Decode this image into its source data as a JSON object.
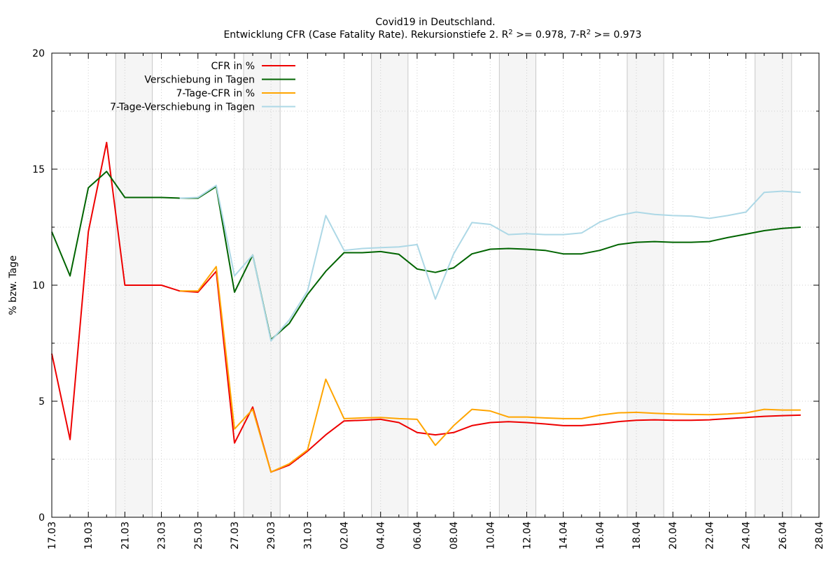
{
  "chart_data": {
    "type": "line",
    "title_line1": "Covid19 in Deutschland.",
    "title_line2_prefix": "Entwicklung CFR (Case Fatality Rate). Rekursionstiefe 2. R",
    "title_line2_mid": " >= 0.978, 7-R",
    "title_line2_suffix": " >= 0.973",
    "title_sup": "2",
    "ylabel": "% bzw. Tage",
    "xlabel": "",
    "ylim": [
      0,
      20
    ],
    "y_ticks": [
      0,
      5,
      10,
      15,
      20
    ],
    "x_start": "17.03",
    "x_end": "28.04",
    "x_tick_labels": [
      "17.03",
      "19.03",
      "21.03",
      "23.03",
      "25.03",
      "27.03",
      "29.03",
      "31.03",
      "02.04",
      "04.04",
      "06.04",
      "08.04",
      "10.04",
      "12.04",
      "14.04",
      "16.04",
      "18.04",
      "20.04",
      "22.04",
      "24.04",
      "26.04",
      "28.04"
    ],
    "grid": true,
    "legend_position": "top-left",
    "weekend_bands": [
      [
        3.5,
        5.5
      ],
      [
        10.5,
        12.5
      ],
      [
        17.5,
        19.5
      ],
      [
        24.5,
        26.5
      ],
      [
        31.5,
        33.5
      ],
      [
        38.5,
        40.5
      ]
    ],
    "series": [
      {
        "name": "CFR in %",
        "color": "#ee0000",
        "start_day": 0,
        "values": [
          7.05,
          3.35,
          12.3,
          16.15,
          10.0,
          10.0,
          10.0,
          9.75,
          9.7,
          10.6,
          3.2,
          4.75,
          1.95,
          2.25,
          2.85,
          3.55,
          4.15,
          4.18,
          4.22,
          4.08,
          3.65,
          3.55,
          3.65,
          3.95,
          4.08,
          4.12,
          4.08,
          4.02,
          3.95,
          3.95,
          4.02,
          4.12,
          4.18,
          4.2,
          4.18,
          4.18,
          4.2,
          4.25,
          4.3,
          4.35,
          4.38,
          4.4
        ]
      },
      {
        "name": "Verschiebung in Tagen",
        "color": "#006400",
        "start_day": 0,
        "values": [
          12.3,
          10.4,
          14.2,
          14.9,
          13.78,
          13.78,
          13.78,
          13.75,
          13.75,
          14.25,
          9.7,
          11.3,
          7.65,
          8.35,
          9.6,
          10.6,
          11.4,
          11.4,
          11.45,
          11.33,
          10.7,
          10.55,
          10.75,
          11.35,
          11.55,
          11.58,
          11.55,
          11.5,
          11.35,
          11.35,
          11.5,
          11.75,
          11.85,
          11.88,
          11.85,
          11.85,
          11.88,
          12.05,
          12.2,
          12.35,
          12.45,
          12.5
        ]
      },
      {
        "name": "7-Tage-CFR in %",
        "color": "#ffa500",
        "start_day": 7,
        "values": [
          9.75,
          9.75,
          10.8,
          3.8,
          4.65,
          1.95,
          2.3,
          2.9,
          5.95,
          4.25,
          4.28,
          4.3,
          4.25,
          4.22,
          3.1,
          3.95,
          4.65,
          4.58,
          4.32,
          4.32,
          4.28,
          4.25,
          4.25,
          4.4,
          4.5,
          4.52,
          4.48,
          4.45,
          4.43,
          4.42,
          4.45,
          4.5,
          4.65,
          4.62,
          4.62
        ]
      },
      {
        "name": "7-Tage-Verschiebung in Tagen",
        "color": "#add8e6",
        "start_day": 7,
        "values": [
          13.75,
          13.78,
          14.3,
          10.4,
          11.3,
          7.6,
          8.5,
          9.75,
          13.0,
          11.5,
          11.58,
          11.62,
          11.65,
          11.75,
          9.4,
          11.35,
          12.7,
          12.62,
          12.18,
          12.22,
          12.18,
          12.18,
          12.25,
          12.72,
          13.0,
          13.15,
          13.05,
          13.0,
          12.98,
          12.88,
          13.0,
          13.15,
          14.0,
          14.05,
          14.0
        ]
      }
    ]
  }
}
